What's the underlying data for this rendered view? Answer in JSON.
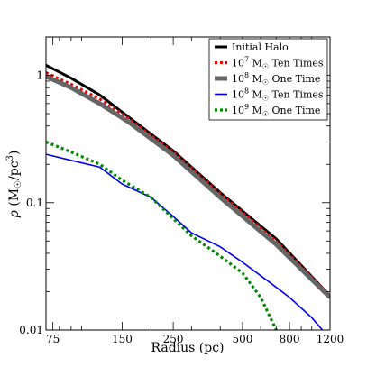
{
  "chart_data": {
    "type": "line",
    "xlabel": "Radius (pc)",
    "ylabel": "ρ (M☉/pc³)",
    "ylabel_parts": {
      "rho": "ρ",
      "open": " (M",
      "sun": "☉",
      "slash": "/pc",
      "exp": "3",
      "close": ")"
    },
    "xscale": "log",
    "yscale": "log",
    "xlim": [
      70,
      1200
    ],
    "ylim": [
      0.01,
      2.0
    ],
    "x_ticks": [
      {
        "value": 75,
        "label": "75"
      },
      {
        "value": 150,
        "label": "150"
      },
      {
        "value": 250,
        "label": "250"
      },
      {
        "value": 500,
        "label": "500"
      },
      {
        "value": 800,
        "label": "800"
      },
      {
        "value": 1200,
        "label": "1200"
      }
    ],
    "y_ticks": [
      {
        "value": 0.01,
        "label": "0.01"
      },
      {
        "value": 0.1,
        "label": "0.1"
      },
      {
        "value": 1,
        "label": "1"
      }
    ],
    "grid": false,
    "legend_position": "top-right",
    "series": [
      {
        "name": "Initial Halo",
        "legend": {
          "prefix": "Initial Halo",
          "exp": "",
          "sun": "",
          "suffix": ""
        },
        "color": "#000000",
        "style": "solid",
        "width": 3,
        "x": [
          70,
          90,
          120,
          160,
          250,
          400,
          700,
          1200
        ],
        "y": [
          1.2,
          0.95,
          0.7,
          0.47,
          0.255,
          0.12,
          0.052,
          0.0185
        ]
      },
      {
        "name": "10^7 M☉ Ten Times",
        "legend": {
          "prefix": "10",
          "exp": "7",
          "sun": "☉",
          "suffix": " Ten Times"
        },
        "color": "#ee0000",
        "style": "dotted",
        "width": 3,
        "x": [
          70,
          90,
          120,
          160,
          250,
          400,
          700,
          1200
        ],
        "y": [
          1.05,
          0.85,
          0.65,
          0.46,
          0.25,
          0.118,
          0.05,
          0.0185
        ]
      },
      {
        "name": "10^8 M☉ One Time",
        "legend": {
          "prefix": "10",
          "exp": "8",
          "sun": "☉",
          "suffix": " One Time"
        },
        "color": "#666666",
        "style": "solid",
        "width": 5,
        "x": [
          70,
          90,
          120,
          160,
          250,
          400,
          700,
          1200
        ],
        "y": [
          0.98,
          0.8,
          0.6,
          0.43,
          0.235,
          0.11,
          0.047,
          0.018
        ]
      },
      {
        "name": "10^8 M☉ Ten Times",
        "legend": {
          "prefix": "10",
          "exp": "8",
          "sun": "☉",
          "suffix": " Ten Times"
        },
        "color": "#0000ee",
        "style": "solid",
        "width": 1.6,
        "x": [
          70,
          90,
          120,
          150,
          200,
          250,
          300,
          400,
          500,
          650,
          800,
          1000,
          1200
        ],
        "y": [
          0.24,
          0.215,
          0.19,
          0.14,
          0.11,
          0.078,
          0.058,
          0.045,
          0.034,
          0.024,
          0.018,
          0.0125,
          0.0085
        ]
      },
      {
        "name": "10^9 M☉ One Time",
        "legend": {
          "prefix": "10",
          "exp": "9",
          "sun": "☉",
          "suffix": " One Time"
        },
        "color": "#008800",
        "style": "dotted",
        "width": 3.2,
        "x": [
          70,
          90,
          120,
          150,
          200,
          250,
          300,
          400,
          500,
          600,
          700,
          800
        ],
        "y": [
          0.3,
          0.25,
          0.2,
          0.15,
          0.11,
          0.075,
          0.055,
          0.038,
          0.028,
          0.018,
          0.01,
          0.006
        ]
      }
    ]
  }
}
